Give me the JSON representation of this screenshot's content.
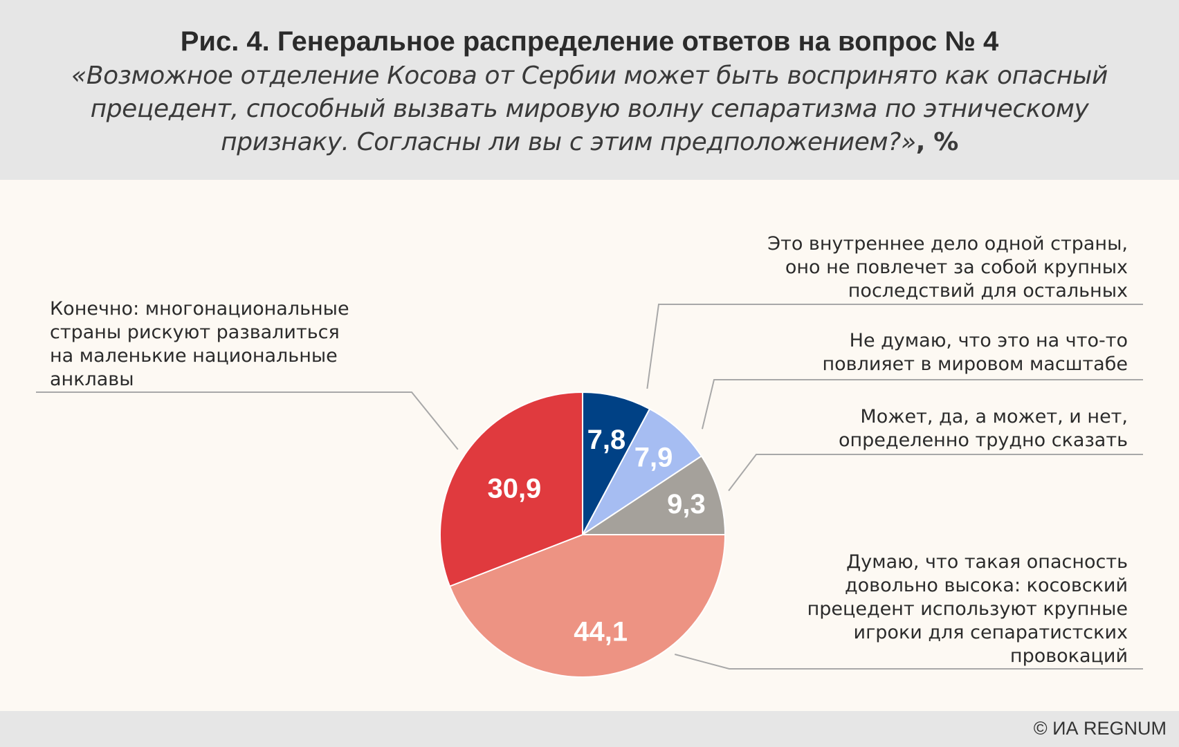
{
  "header": {
    "title": "Рис. 4. Генеральное распределение ответов на вопрос № 4",
    "subtitle": "«Возможное отделение Косова от Сербии может быть воспринято как опасный прецедент, способный вызвать мировую волну сепаратизма по этническому признаку. Согласны ли вы с этим предположением?»",
    "unit": ", %"
  },
  "footer": {
    "credit": "© ИА REGNUM"
  },
  "colors": {
    "background": "#fdf9f3",
    "header_band": "#e6e6e6",
    "leader_line": "#a8a8a8",
    "value_text": "#ffffff"
  },
  "chart_data": {
    "type": "pie",
    "start": "12 o'clock",
    "direction": "clockwise",
    "slices": [
      {
        "value": 7.8,
        "display": "7,8",
        "color": "#004185",
        "label": [
          "Это внутреннее дело одной страны,",
          "оно не повлечет за собой крупных",
          "последствий для остальных"
        ]
      },
      {
        "value": 7.9,
        "display": "7,9",
        "color": "#a6bdf2",
        "label": [
          "Не думаю, что это на что-то",
          "повлияет в мировом масштабе"
        ]
      },
      {
        "value": 9.3,
        "display": "9,3",
        "color": "#a5a19b",
        "label": [
          "Может, да, а может, и нет,",
          "определенно трудно сказать"
        ]
      },
      {
        "value": 44.1,
        "display": "44,1",
        "color": "#ed9383",
        "label": [
          "Думаю, что такая опасность",
          "довольно высока: косовский",
          "прецедент используют крупные",
          "игроки для сепаратистских",
          "провокаций"
        ]
      },
      {
        "value": 30.9,
        "display": "30,9",
        "color": "#e03a3e",
        "label": [
          "Конечно: многонациональные",
          "страны рискуют развалиться",
          "на маленькие национальные",
          "анклавы"
        ]
      }
    ]
  }
}
